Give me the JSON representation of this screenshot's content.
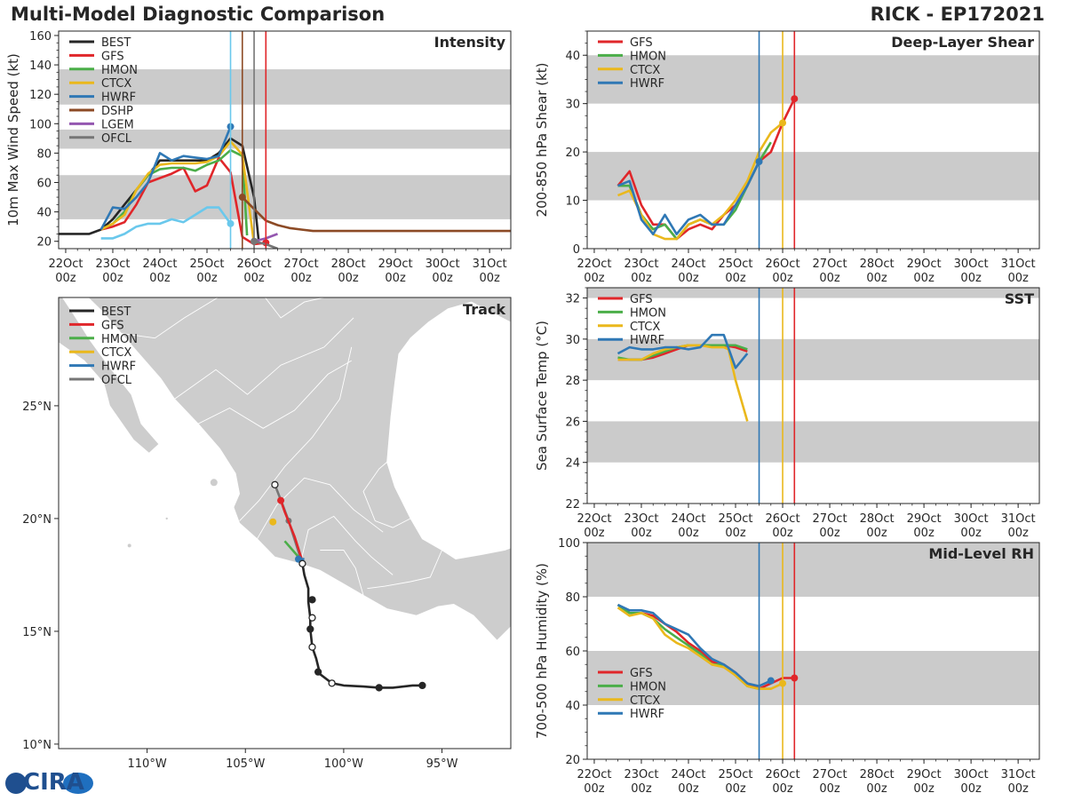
{
  "header": {
    "left_title": "Multi-Model Diagnostic Comparison",
    "right_title": "RICK - EP172021"
  },
  "logo": {
    "text": "CIRA"
  },
  "colors": {
    "BEST": "#262626",
    "GFS": "#e0262a",
    "HMON": "#4bae49",
    "CTCX": "#eab81c",
    "HWRF": "#2f78b5",
    "DSHP": "#8c4a25",
    "LGEM": "#9457b0",
    "OFCL": "#767676",
    "SHIPS": "#6ac8ec",
    "band": "#cbcbcb",
    "land": "#cdcdcd",
    "land_border": "#ffffff"
  },
  "time_axis": {
    "tick_labels": [
      [
        "22Oct",
        "00z"
      ],
      [
        "23Oct",
        "00z"
      ],
      [
        "24Oct",
        "00z"
      ],
      [
        "25Oct",
        "00z"
      ],
      [
        "26Oct",
        "00z"
      ],
      [
        "27Oct",
        "00z"
      ],
      [
        "28Oct",
        "00z"
      ],
      [
        "29Oct",
        "00z"
      ],
      [
        "30Oct",
        "00z"
      ],
      [
        "31Oct",
        "00z"
      ]
    ],
    "xlim": [
      -0.15,
      9.45
    ]
  },
  "chart_data": [
    {
      "id": "intensity",
      "type": "line",
      "title": "Intensity",
      "ylabel": "10m Max Wind Speed (kt)",
      "ylim": [
        15,
        163
      ],
      "yticks": [
        20,
        40,
        60,
        80,
        100,
        120,
        140,
        160
      ],
      "bands": [
        [
          35,
          65
        ],
        [
          83,
          96
        ],
        [
          113,
          137
        ]
      ],
      "vlines": [
        {
          "x": 3.5,
          "color": "#6ac8ec"
        },
        {
          "x": 3.75,
          "color": "#8c4a25"
        },
        {
          "x": 4.0,
          "color": "#767676"
        },
        {
          "x": 4.25,
          "color": "#e0262a"
        }
      ],
      "legend": [
        "BEST",
        "GFS",
        "HMON",
        "CTCX",
        "HWRF",
        "DSHP",
        "LGEM",
        "OFCL"
      ],
      "series": [
        {
          "name": "BEST",
          "x": [
            -0.25,
            0.25,
            0.5,
            0.75,
            1.0,
            1.25,
            1.5,
            1.75,
            2.0,
            2.25,
            2.5,
            2.75,
            3.0,
            3.25,
            3.5,
            3.75,
            4.0
          ],
          "y": [
            25,
            25,
            25,
            28,
            35,
            45,
            55,
            65,
            75,
            75,
            75,
            75,
            75,
            80,
            90,
            85,
            50
          ]
        },
        {
          "name": "BEST_end",
          "x": [
            4.0,
            4.1
          ],
          "y": [
            50,
            20
          ]
        },
        {
          "name": "GFS",
          "x": [
            0.75,
            1.0,
            1.25,
            1.5,
            1.75,
            2.0,
            2.25,
            2.5,
            2.75,
            3.0,
            3.25,
            3.5,
            3.75,
            4.0,
            4.25
          ],
          "y": [
            28,
            30,
            33,
            45,
            60,
            63,
            66,
            70,
            54,
            58,
            77,
            67,
            23,
            18,
            19
          ],
          "marker_last": true
        },
        {
          "name": "HMON",
          "x": [
            0.75,
            1.0,
            1.25,
            1.5,
            1.75,
            2.0,
            2.25,
            2.5,
            2.75,
            3.0,
            3.25,
            3.5,
            3.75,
            3.85
          ],
          "y": [
            28,
            32,
            40,
            55,
            65,
            69,
            70,
            70,
            68,
            72,
            75,
            82,
            78,
            24
          ]
        },
        {
          "name": "CTCX",
          "x": [
            0.75,
            1.0,
            1.25,
            1.5,
            1.75,
            2.0,
            2.25,
            2.5,
            2.75,
            3.0,
            3.25,
            3.5,
            3.75,
            4.0
          ],
          "y": [
            28,
            32,
            38,
            55,
            66,
            72,
            73,
            73,
            73,
            74,
            78,
            88,
            79,
            18
          ]
        },
        {
          "name": "HWRF",
          "x": [
            0.75,
            1.0,
            1.25,
            1.5,
            1.75,
            2.0,
            2.25,
            2.5,
            2.75,
            3.0,
            3.25,
            3.5
          ],
          "y": [
            28,
            43,
            42,
            50,
            60,
            80,
            75,
            78,
            77,
            76,
            78,
            98
          ],
          "marker_last": true
        },
        {
          "name": "DSHP",
          "x": [
            3.75,
            4.0,
            4.25,
            4.5,
            4.75,
            5.0,
            5.25,
            5.5,
            5.75,
            6.0,
            6.5,
            7.0,
            7.5,
            8.0,
            8.5,
            9.0,
            9.45
          ],
          "y": [
            50,
            42,
            34,
            31,
            29,
            28,
            27,
            27,
            27,
            27,
            27,
            27,
            27,
            27,
            27,
            27,
            27
          ],
          "marker_first": true
        },
        {
          "name": "LGEM",
          "x": [
            4.0,
            4.25,
            4.5
          ],
          "y": [
            20,
            22,
            25
          ]
        },
        {
          "name": "OFCL",
          "x": [
            4.0,
            4.25,
            4.5
          ],
          "y": [
            20,
            18,
            15
          ],
          "marker_first": true
        },
        {
          "name": "SHIPS",
          "x": [
            0.75,
            1.0,
            1.25,
            1.5,
            1.75,
            2.0,
            2.25,
            2.5,
            2.75,
            3.0,
            3.25,
            3.5
          ],
          "y": [
            22,
            22,
            25,
            30,
            32,
            32,
            35,
            33,
            38,
            43,
            43,
            32
          ],
          "marker_last": true
        }
      ]
    },
    {
      "id": "shear",
      "type": "line",
      "title": "Deep-Layer Shear",
      "ylabel": "200-850 hPa Shear (kt)",
      "ylim": [
        0,
        45
      ],
      "yticks": [
        0,
        10,
        20,
        30,
        40
      ],
      "bands": [
        [
          10,
          20
        ],
        [
          30,
          40
        ]
      ],
      "vlines": [
        {
          "x": 3.5,
          "color": "#2f78b5"
        },
        {
          "x": 4.0,
          "color": "#eab81c"
        },
        {
          "x": 4.25,
          "color": "#e0262a"
        }
      ],
      "legend": [
        "GFS",
        "HMON",
        "CTCX",
        "HWRF"
      ],
      "series": [
        {
          "name": "GFS",
          "x": [
            0.5,
            0.75,
            1.0,
            1.25,
            1.5,
            1.75,
            2.0,
            2.25,
            2.5,
            2.75,
            3.0,
            3.25,
            3.5,
            3.75,
            4.0,
            4.25
          ],
          "y": [
            13,
            16,
            9,
            5,
            5,
            2,
            4,
            5,
            4,
            7,
            9,
            13,
            18,
            20,
            26,
            31
          ],
          "marker_last": true
        },
        {
          "name": "HMON",
          "x": [
            0.5,
            0.75,
            1.0,
            1.25,
            1.5,
            1.75,
            2.0,
            2.25,
            2.5,
            2.75,
            3.0,
            3.25,
            3.5,
            3.75
          ],
          "y": [
            13,
            13,
            7,
            4,
            5,
            2,
            5,
            6,
            5,
            5,
            8,
            13,
            18,
            22
          ]
        },
        {
          "name": "CTCX",
          "x": [
            0.5,
            0.75,
            1.0,
            1.25,
            1.5,
            1.75,
            2.0,
            2.25,
            2.5,
            2.75,
            3.0,
            3.25,
            3.5,
            3.75,
            4.0
          ],
          "y": [
            11,
            12,
            7,
            3,
            2,
            2,
            5,
            6,
            5,
            7,
            10,
            14,
            20,
            24,
            26
          ],
          "marker_last": true
        },
        {
          "name": "HWRF",
          "x": [
            0.5,
            0.75,
            1.0,
            1.25,
            1.5,
            1.75,
            2.0,
            2.25,
            2.5,
            2.75,
            3.0,
            3.25,
            3.5
          ],
          "y": [
            13,
            14,
            6,
            3,
            7,
            3,
            6,
            7,
            5,
            5,
            9,
            13,
            18
          ],
          "marker_last": true
        }
      ]
    },
    {
      "id": "sst",
      "type": "line",
      "title": "SST",
      "ylabel": "Sea Surface Temp (°C)",
      "ylim": [
        22,
        32.5
      ],
      "yticks": [
        22,
        24,
        26,
        28,
        30,
        32
      ],
      "bands": [
        [
          24,
          26
        ],
        [
          28,
          30
        ],
        [
          32,
          34
        ]
      ],
      "vlines": [
        {
          "x": 3.5,
          "color": "#2f78b5"
        },
        {
          "x": 4.0,
          "color": "#eab81c"
        },
        {
          "x": 4.25,
          "color": "#e0262a"
        }
      ],
      "legend": [
        "GFS",
        "HMON",
        "CTCX",
        "HWRF"
      ],
      "series": [
        {
          "name": "GFS",
          "x": [
            0.5,
            0.75,
            1.0,
            1.25,
            1.5,
            1.75,
            2.0,
            2.25,
            2.5,
            2.75,
            3.0,
            3.25
          ],
          "y": [
            29.0,
            29.0,
            29.0,
            29.1,
            29.3,
            29.5,
            29.7,
            29.7,
            29.7,
            29.7,
            29.6,
            29.4
          ]
        },
        {
          "name": "HMON",
          "x": [
            0.5,
            0.75,
            1.0,
            1.25,
            1.5,
            1.75,
            2.0,
            2.25,
            2.5,
            2.75,
            3.0,
            3.25
          ],
          "y": [
            29.1,
            29.0,
            29.0,
            29.2,
            29.4,
            29.6,
            29.7,
            29.7,
            29.7,
            29.7,
            29.7,
            29.5
          ]
        },
        {
          "name": "CTCX",
          "x": [
            0.5,
            0.75,
            1.0,
            1.25,
            1.5,
            1.75,
            2.0,
            2.25,
            2.5,
            2.75,
            2.85,
            3.0,
            3.25
          ],
          "y": [
            29.0,
            29.0,
            29.0,
            29.3,
            29.5,
            29.6,
            29.7,
            29.7,
            29.6,
            29.6,
            29.5,
            28.0,
            26.0
          ]
        },
        {
          "name": "HWRF",
          "x": [
            0.5,
            0.75,
            1.0,
            1.25,
            1.5,
            1.75,
            2.0,
            2.25,
            2.5,
            2.75,
            3.0,
            3.25
          ],
          "y": [
            29.3,
            29.6,
            29.5,
            29.5,
            29.6,
            29.6,
            29.5,
            29.6,
            30.2,
            30.2,
            28.6,
            29.3
          ]
        }
      ]
    },
    {
      "id": "rh",
      "type": "line",
      "title": "Mid-Level RH",
      "ylabel": "700-500 hPa Humidity (%)",
      "ylim": [
        20,
        100
      ],
      "yticks": [
        20,
        40,
        60,
        80,
        100
      ],
      "bands": [
        [
          40,
          60
        ],
        [
          80,
          100
        ]
      ],
      "vlines": [
        {
          "x": 3.5,
          "color": "#2f78b5"
        },
        {
          "x": 4.0,
          "color": "#eab81c"
        },
        {
          "x": 4.25,
          "color": "#e0262a"
        }
      ],
      "legend": [
        "GFS",
        "HMON",
        "CTCX",
        "HWRF"
      ],
      "series": [
        {
          "name": "GFS",
          "x": [
            0.5,
            0.75,
            1.0,
            1.25,
            1.5,
            1.75,
            2.0,
            2.25,
            2.5,
            2.75,
            3.0,
            3.25,
            3.5,
            3.75,
            4.0,
            4.25
          ],
          "y": [
            77,
            74,
            74,
            73,
            70,
            67,
            63,
            60,
            56,
            55,
            52,
            48,
            46,
            48,
            50,
            50
          ],
          "marker_last": true
        },
        {
          "name": "HMON",
          "x": [
            0.5,
            0.75,
            1.0,
            1.25,
            1.5,
            1.75,
            2.0,
            2.25,
            2.5,
            2.75,
            3.0,
            3.25,
            3.5,
            3.75
          ],
          "y": [
            77,
            74,
            74,
            72,
            68,
            65,
            62,
            59,
            55,
            55,
            51,
            47,
            46,
            46
          ]
        },
        {
          "name": "CTCX",
          "x": [
            0.5,
            0.75,
            1.0,
            1.25,
            1.5,
            1.75,
            2.0,
            2.25,
            2.5,
            2.75,
            3.0,
            3.25,
            3.5,
            3.75,
            4.0
          ],
          "y": [
            76,
            73,
            74,
            72,
            66,
            63,
            61,
            58,
            55,
            54,
            51,
            47,
            46,
            46,
            48
          ],
          "marker_last": true
        },
        {
          "name": "HWRF",
          "x": [
            0.5,
            0.75,
            1.0,
            1.25,
            1.5,
            1.75,
            2.0,
            2.25,
            2.5,
            2.75,
            3.0,
            3.25,
            3.5,
            3.75
          ],
          "y": [
            77,
            75,
            75,
            74,
            70,
            68,
            66,
            61,
            57,
            55,
            52,
            48,
            47,
            49
          ],
          "marker_last": true
        }
      ]
    },
    {
      "id": "track",
      "type": "scatter",
      "title": "Track",
      "lon_range": [
        -114.5,
        -91.5
      ],
      "lat_range": [
        9.8,
        29.8
      ],
      "xticks": [
        {
          "lon": -110,
          "label": "110°W"
        },
        {
          "lon": -105,
          "label": "105°W"
        },
        {
          "lon": -100,
          "label": "100°W"
        },
        {
          "lon": -95,
          "label": "95°W"
        }
      ],
      "yticks": [
        {
          "lat": 10,
          "label": "10°N"
        },
        {
          "lat": 15,
          "label": "15°N"
        },
        {
          "lat": 20,
          "label": "20°N"
        },
        {
          "lat": 25,
          "label": "25°N"
        }
      ],
      "legend": [
        "BEST",
        "GFS",
        "HMON",
        "CTCX",
        "HWRF",
        "OFCL"
      ],
      "series": [
        {
          "name": "BEST",
          "lon": [
            -96.0,
            -96.5,
            -97.5,
            -98.2,
            -99.0,
            -100.0,
            -100.6,
            -101.2,
            -101.4,
            -101.6,
            -101.7,
            -101.7,
            -101.8,
            -101.8,
            -102.0,
            -102.1
          ],
          "lat": [
            12.6,
            12.6,
            12.5,
            12.5,
            12.55,
            12.6,
            12.7,
            13.1,
            13.8,
            14.3,
            15.1,
            15.6,
            16.3,
            16.9,
            17.5,
            18.0
          ]
        },
        {
          "name": "BEST_pts",
          "lon": [
            -96.0,
            -98.2,
            -100.6,
            -101.3,
            -101.6,
            -101.7,
            -101.6,
            -102.1
          ],
          "lat": [
            12.6,
            12.5,
            12.7,
            13.2,
            14.3,
            15.1,
            15.6,
            18.0
          ],
          "open": [
            false,
            false,
            true,
            false,
            true,
            false,
            true,
            true
          ]
        },
        {
          "name": "BEST_pt16",
          "lon": [
            -101.6
          ],
          "lat": [
            16.4
          ],
          "open": [
            false
          ]
        },
        {
          "name": "OFCL",
          "lon": [
            -102.1,
            -102.4,
            -102.8,
            -103.1,
            -103.5
          ],
          "lat": [
            18.0,
            18.8,
            19.9,
            20.6,
            21.5
          ],
          "open_end": true
        },
        {
          "name": "GFS",
          "lon": [
            -102.1,
            -102.5,
            -103.0,
            -103.2
          ],
          "lat": [
            18.1,
            19.2,
            20.3,
            20.8
          ],
          "marker_last": true
        },
        {
          "name": "HMON",
          "lon": [
            -102.1,
            -102.6,
            -103.0
          ],
          "lat": [
            18.1,
            18.6,
            19.0
          ]
        },
        {
          "name": "CTCX",
          "lon": [
            -103.6
          ],
          "lat": [
            19.85
          ],
          "marker_last": true
        },
        {
          "name": "HWRF",
          "lon": [
            -102.0,
            -102.3
          ],
          "lat": [
            18.2,
            18.2
          ],
          "marker_last": true
        }
      ]
    }
  ]
}
